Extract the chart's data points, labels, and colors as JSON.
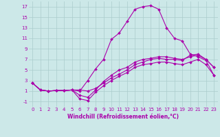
{
  "xlabel": "Windchill (Refroidissement éolien,°C)",
  "bg_color": "#cce8e8",
  "line_color": "#aa00aa",
  "grid_color": "#aacccc",
  "xlim": [
    -0.5,
    23.5
  ],
  "ylim": [
    -2,
    18
  ],
  "xticks": [
    0,
    1,
    2,
    3,
    4,
    5,
    6,
    7,
    8,
    9,
    10,
    11,
    12,
    13,
    14,
    15,
    16,
    17,
    18,
    19,
    20,
    21,
    22,
    23
  ],
  "yticks": [
    -1,
    1,
    3,
    5,
    7,
    9,
    11,
    13,
    15,
    17
  ],
  "series": [
    [
      2.5,
      1.2,
      1.0,
      1.1,
      1.1,
      1.2,
      1.0,
      3.0,
      5.2,
      7.0,
      10.8,
      12.0,
      14.2,
      16.5,
      17.0,
      17.2,
      16.5,
      13.0,
      11.0,
      10.5,
      8.0,
      7.5,
      6.8,
      4.0
    ],
    [
      2.5,
      1.2,
      1.0,
      1.1,
      1.1,
      1.2,
      1.2,
      1.0,
      1.5,
      2.5,
      3.5,
      4.2,
      5.0,
      6.0,
      6.5,
      7.0,
      7.2,
      7.0,
      7.0,
      6.8,
      7.8,
      8.0,
      7.0,
      5.5
    ],
    [
      2.5,
      1.2,
      1.0,
      1.1,
      1.1,
      1.2,
      0.2,
      -0.2,
      1.2,
      2.8,
      4.0,
      5.0,
      5.5,
      6.5,
      7.0,
      7.2,
      7.5,
      7.5,
      7.2,
      7.0,
      7.5,
      7.8,
      7.0,
      5.5
    ],
    [
      2.5,
      1.2,
      1.0,
      1.1,
      1.1,
      1.2,
      -0.5,
      -0.8,
      0.8,
      2.0,
      3.0,
      3.8,
      4.5,
      5.5,
      6.0,
      6.2,
      6.5,
      6.5,
      6.2,
      6.0,
      6.5,
      7.0,
      6.0,
      4.0
    ]
  ],
  "tick_fontsize": 5,
  "xlabel_fontsize": 5.5
}
